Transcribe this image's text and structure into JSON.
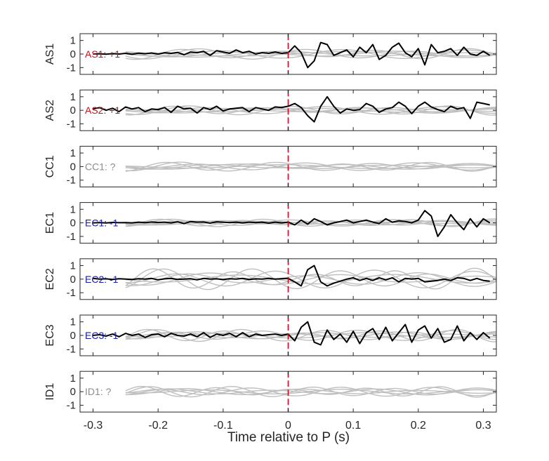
{
  "chart_data": {
    "type": "line",
    "xlabel": "Time relative to P (s)",
    "xlim": [
      -0.32,
      0.32
    ],
    "x_ticks": [
      -0.3,
      -0.2,
      -0.1,
      0,
      0.1,
      0.2,
      0.3
    ],
    "x_tick_labels": [
      "-0.3",
      "-0.2",
      "-0.1",
      "0",
      "0.1",
      "0.2",
      "0.3"
    ],
    "ylim": [
      -1.5,
      1.5
    ],
    "y_ticks": [
      1,
      0,
      -1
    ],
    "y_tick_labels": [
      "1",
      "0",
      "-1"
    ],
    "marker_line": {
      "x": 0,
      "color": "#e0001a",
      "style": "dashed"
    },
    "background_color": "#bfbfbf",
    "main_color": "#000000",
    "panels": [
      {
        "ylabel": "AS1",
        "label": "AS1: +1",
        "label_color": "#c0141a",
        "main_series": {
          "x": [
            -0.3,
            -0.29,
            -0.28,
            -0.27,
            -0.26,
            -0.25,
            -0.24,
            -0.23,
            -0.22,
            -0.21,
            -0.2,
            -0.19,
            -0.18,
            -0.17,
            -0.16,
            -0.15,
            -0.14,
            -0.13,
            -0.12,
            -0.11,
            -0.1,
            -0.09,
            -0.08,
            -0.07,
            -0.06,
            -0.05,
            -0.04,
            -0.03,
            -0.02,
            -0.01,
            0,
            0.01,
            0.02,
            0.03,
            0.04,
            0.05,
            0.06,
            0.07,
            0.08,
            0.09,
            0.1,
            0.11,
            0.12,
            0.13,
            0.14,
            0.15,
            0.16,
            0.17,
            0.18,
            0.19,
            0.2,
            0.21,
            0.22,
            0.23,
            0.24,
            0.25,
            0.26,
            0.27,
            0.28,
            0.29,
            0.3,
            0.31
          ],
          "y": [
            0,
            0.02,
            -0.01,
            0.03,
            0,
            0.05,
            -0.02,
            0.06,
            0.02,
            0.08,
            0,
            0.1,
            0.05,
            0.12,
            -0.05,
            0.15,
            0.1,
            0.2,
            -0.1,
            0.25,
            0.15,
            0.05,
            0.3,
            0.1,
            0.2,
            0,
            0.1,
            0.05,
            0.15,
            0.05,
            0.1,
            0.6,
            0.1,
            -1.0,
            -0.5,
            0.85,
            0.7,
            -0.1,
            0.1,
            0.3,
            -0.2,
            0.5,
            0.1,
            0.7,
            -0.4,
            -0.1,
            0.5,
            0.8,
            0.1,
            -0.2,
            0.4,
            -0.8,
            0.7,
            0.1,
            0.2,
            0.4,
            -0.1,
            0.5,
            0,
            -0.1,
            0.2,
            -0.1
          ]
        },
        "background_amplitude": 0.35
      },
      {
        "ylabel": "AS2",
        "label": "AS2: +1",
        "label_color": "#c0141a",
        "main_series": {
          "x": [
            -0.3,
            -0.29,
            -0.28,
            -0.27,
            -0.26,
            -0.25,
            -0.24,
            -0.23,
            -0.22,
            -0.21,
            -0.2,
            -0.19,
            -0.18,
            -0.17,
            -0.16,
            -0.15,
            -0.14,
            -0.13,
            -0.12,
            -0.11,
            -0.1,
            -0.09,
            -0.08,
            -0.07,
            -0.06,
            -0.05,
            -0.04,
            -0.03,
            -0.02,
            -0.01,
            0,
            0.01,
            0.02,
            0.03,
            0.04,
            0.05,
            0.06,
            0.07,
            0.08,
            0.09,
            0.1,
            0.11,
            0.12,
            0.13,
            0.14,
            0.15,
            0.16,
            0.17,
            0.18,
            0.19,
            0.2,
            0.21,
            0.22,
            0.23,
            0.24,
            0.25,
            0.26,
            0.27,
            0.28,
            0.29,
            0.3,
            0.31
          ],
          "y": [
            0.1,
            0.2,
            0,
            0.15,
            -0.1,
            0.25,
            0.1,
            0.2,
            -0.1,
            0.1,
            0.05,
            0.2,
            -0.15,
            0.3,
            0.1,
            0.15,
            -0.2,
            0.2,
            0.05,
            0.3,
            -0.05,
            0.1,
            0.15,
            0.2,
            -0.1,
            0.2,
            0.1,
            0,
            0.25,
            0.2,
            0.3,
            0.5,
            0.2,
            -0.4,
            -0.85,
            0.3,
            1.0,
            0.3,
            -0.2,
            0.1,
            0,
            0.05,
            0.5,
            0.3,
            -0.15,
            0.1,
            0.2,
            0.6,
            0.3,
            -0.25,
            0.3,
            0.6,
            0.25,
            0.05,
            -0.1,
            0.3,
            0.1,
            0.2,
            -0.6,
            0.6,
            0.5,
            0.4
          ]
        },
        "background_amplitude": 0.3
      },
      {
        "ylabel": "CC1",
        "label": "CC1: ?",
        "label_color": "#8c8c8c",
        "main_series": null,
        "background_amplitude": 0.3
      },
      {
        "ylabel": "EC1",
        "label": "EC1: -1",
        "label_color": "#1a1aa6",
        "main_series": {
          "x": [
            -0.3,
            -0.29,
            -0.28,
            -0.27,
            -0.26,
            -0.25,
            -0.24,
            -0.23,
            -0.22,
            -0.21,
            -0.2,
            -0.19,
            -0.18,
            -0.17,
            -0.16,
            -0.15,
            -0.14,
            -0.13,
            -0.12,
            -0.11,
            -0.1,
            -0.09,
            -0.08,
            -0.07,
            -0.06,
            -0.05,
            -0.04,
            -0.03,
            -0.02,
            -0.01,
            0,
            0.01,
            0.02,
            0.03,
            0.04,
            0.05,
            0.06,
            0.07,
            0.08,
            0.09,
            0.1,
            0.11,
            0.12,
            0.13,
            0.14,
            0.15,
            0.16,
            0.17,
            0.18,
            0.19,
            0.2,
            0.21,
            0.22,
            0.23,
            0.24,
            0.25,
            0.26,
            0.27,
            0.28,
            0.29,
            0.3,
            0.31
          ],
          "y": [
            0,
            0.02,
            -0.01,
            0.03,
            0.01,
            0.02,
            0,
            0.05,
            0.02,
            0.06,
            0.03,
            0.05,
            0,
            0.08,
            -0.05,
            0.1,
            0.05,
            0.06,
            -0.02,
            0.08,
            0.05,
            0.02,
            0.05,
            0,
            0.05,
            0.02,
            0.05,
            -0.02,
            0.05,
            0,
            0.05,
            -0.15,
            0.2,
            -0.1,
            0.3,
            0.1,
            -0.15,
            0,
            0.1,
            0.2,
            0,
            0.1,
            0.2,
            0.05,
            -0.05,
            0.3,
            0.05,
            0.15,
            0.1,
            0,
            0.2,
            0.9,
            0.5,
            -1.0,
            -0.3,
            0.6,
            0,
            -0.5,
            0.3,
            -0.3,
            0.3,
            0
          ]
        },
        "background_amplitude": 0.25
      },
      {
        "ylabel": "EC2",
        "label": "EC2: -1",
        "label_color": "#1a1aa6",
        "main_series": {
          "x": [
            -0.3,
            -0.29,
            -0.28,
            -0.27,
            -0.26,
            -0.25,
            -0.24,
            -0.23,
            -0.22,
            -0.21,
            -0.2,
            -0.19,
            -0.18,
            -0.17,
            -0.16,
            -0.15,
            -0.14,
            -0.13,
            -0.12,
            -0.11,
            -0.1,
            -0.09,
            -0.08,
            -0.07,
            -0.06,
            -0.05,
            -0.04,
            -0.03,
            -0.02,
            -0.01,
            0,
            0.01,
            0.02,
            0.03,
            0.04,
            0.05,
            0.06,
            0.07,
            0.08,
            0.09,
            0.1,
            0.11,
            0.12,
            0.13,
            0.14,
            0.15,
            0.16,
            0.17,
            0.18,
            0.19,
            0.2,
            0.21,
            0.22,
            0.23,
            0.24,
            0.25,
            0.26,
            0.27,
            0.28,
            0.29,
            0.3,
            0.31
          ],
          "y": [
            0.05,
            0,
            0.02,
            -0.02,
            0.03,
            0,
            -0.02,
            0.03,
            0,
            0.05,
            -0.05,
            0.02,
            0.05,
            -0.02,
            0,
            0.03,
            -0.05,
            0.05,
            0,
            0.02,
            -0.03,
            0.03,
            0,
            0.05,
            -0.02,
            0.02,
            0,
            0.05,
            0,
            0.03,
            0.05,
            -0.2,
            -0.5,
            0.7,
            1.0,
            -0.2,
            -0.5,
            -0.3,
            -0.15,
            0,
            0.1,
            -0.1,
            0.05,
            -0.1,
            0.1,
            -0.05,
            0.1,
            -0.2,
            0.05,
            0,
            0.05,
            -0.2,
            -0.15,
            -0.1,
            0,
            -0.1,
            0.1,
            0.05,
            -0.1,
            0.05,
            -0.1,
            -0.15
          ]
        },
        "background_amplitude": 0.7
      },
      {
        "ylabel": "EC3",
        "label": "EC3: -1",
        "label_color": "#1a1aa6",
        "main_series": {
          "x": [
            -0.3,
            -0.29,
            -0.28,
            -0.27,
            -0.26,
            -0.25,
            -0.24,
            -0.23,
            -0.22,
            -0.21,
            -0.2,
            -0.19,
            -0.18,
            -0.17,
            -0.16,
            -0.15,
            -0.14,
            -0.13,
            -0.12,
            -0.11,
            -0.1,
            -0.09,
            -0.08,
            -0.07,
            -0.06,
            -0.05,
            -0.04,
            -0.03,
            -0.02,
            -0.01,
            0,
            0.01,
            0.02,
            0.03,
            0.04,
            0.05,
            0.06,
            0.07,
            0.08,
            0.09,
            0.1,
            0.11,
            0.12,
            0.13,
            0.14,
            0.15,
            0.16,
            0.17,
            0.18,
            0.19,
            0.2,
            0.21,
            0.22,
            0.23,
            0.24,
            0.25,
            0.26,
            0.27,
            0.28,
            0.29,
            0.3,
            0.31
          ],
          "y": [
            0,
            0.05,
            -0.05,
            0.1,
            -0.1,
            0.15,
            0,
            0.1,
            -0.15,
            0.05,
            0.1,
            -0.1,
            0.15,
            0,
            -0.05,
            0.1,
            -0.1,
            0.2,
            -0.15,
            0.1,
            0,
            0.15,
            -0.1,
            0.2,
            -0.1,
            0.1,
            0,
            0.05,
            0.1,
            0,
            0.1,
            -0.4,
            0.6,
            1.0,
            -0.5,
            -0.7,
            0.4,
            -0.3,
            0.1,
            -0.5,
            0.3,
            -0.6,
            0.2,
            0.5,
            -0.3,
            0.6,
            -0.4,
            0.2,
            0.8,
            -0.5,
            0.4,
            0.7,
            -0.2,
            0.5,
            -0.5,
            -0.3,
            0.7,
            -0.4,
            0.2,
            -0.3,
            0.2,
            -0.2
          ]
        },
        "background_amplitude": 0.4
      },
      {
        "ylabel": "ID1",
        "label": "ID1: ?",
        "label_color": "#8c8c8c",
        "main_series": null,
        "background_amplitude": 0.35
      }
    ]
  }
}
